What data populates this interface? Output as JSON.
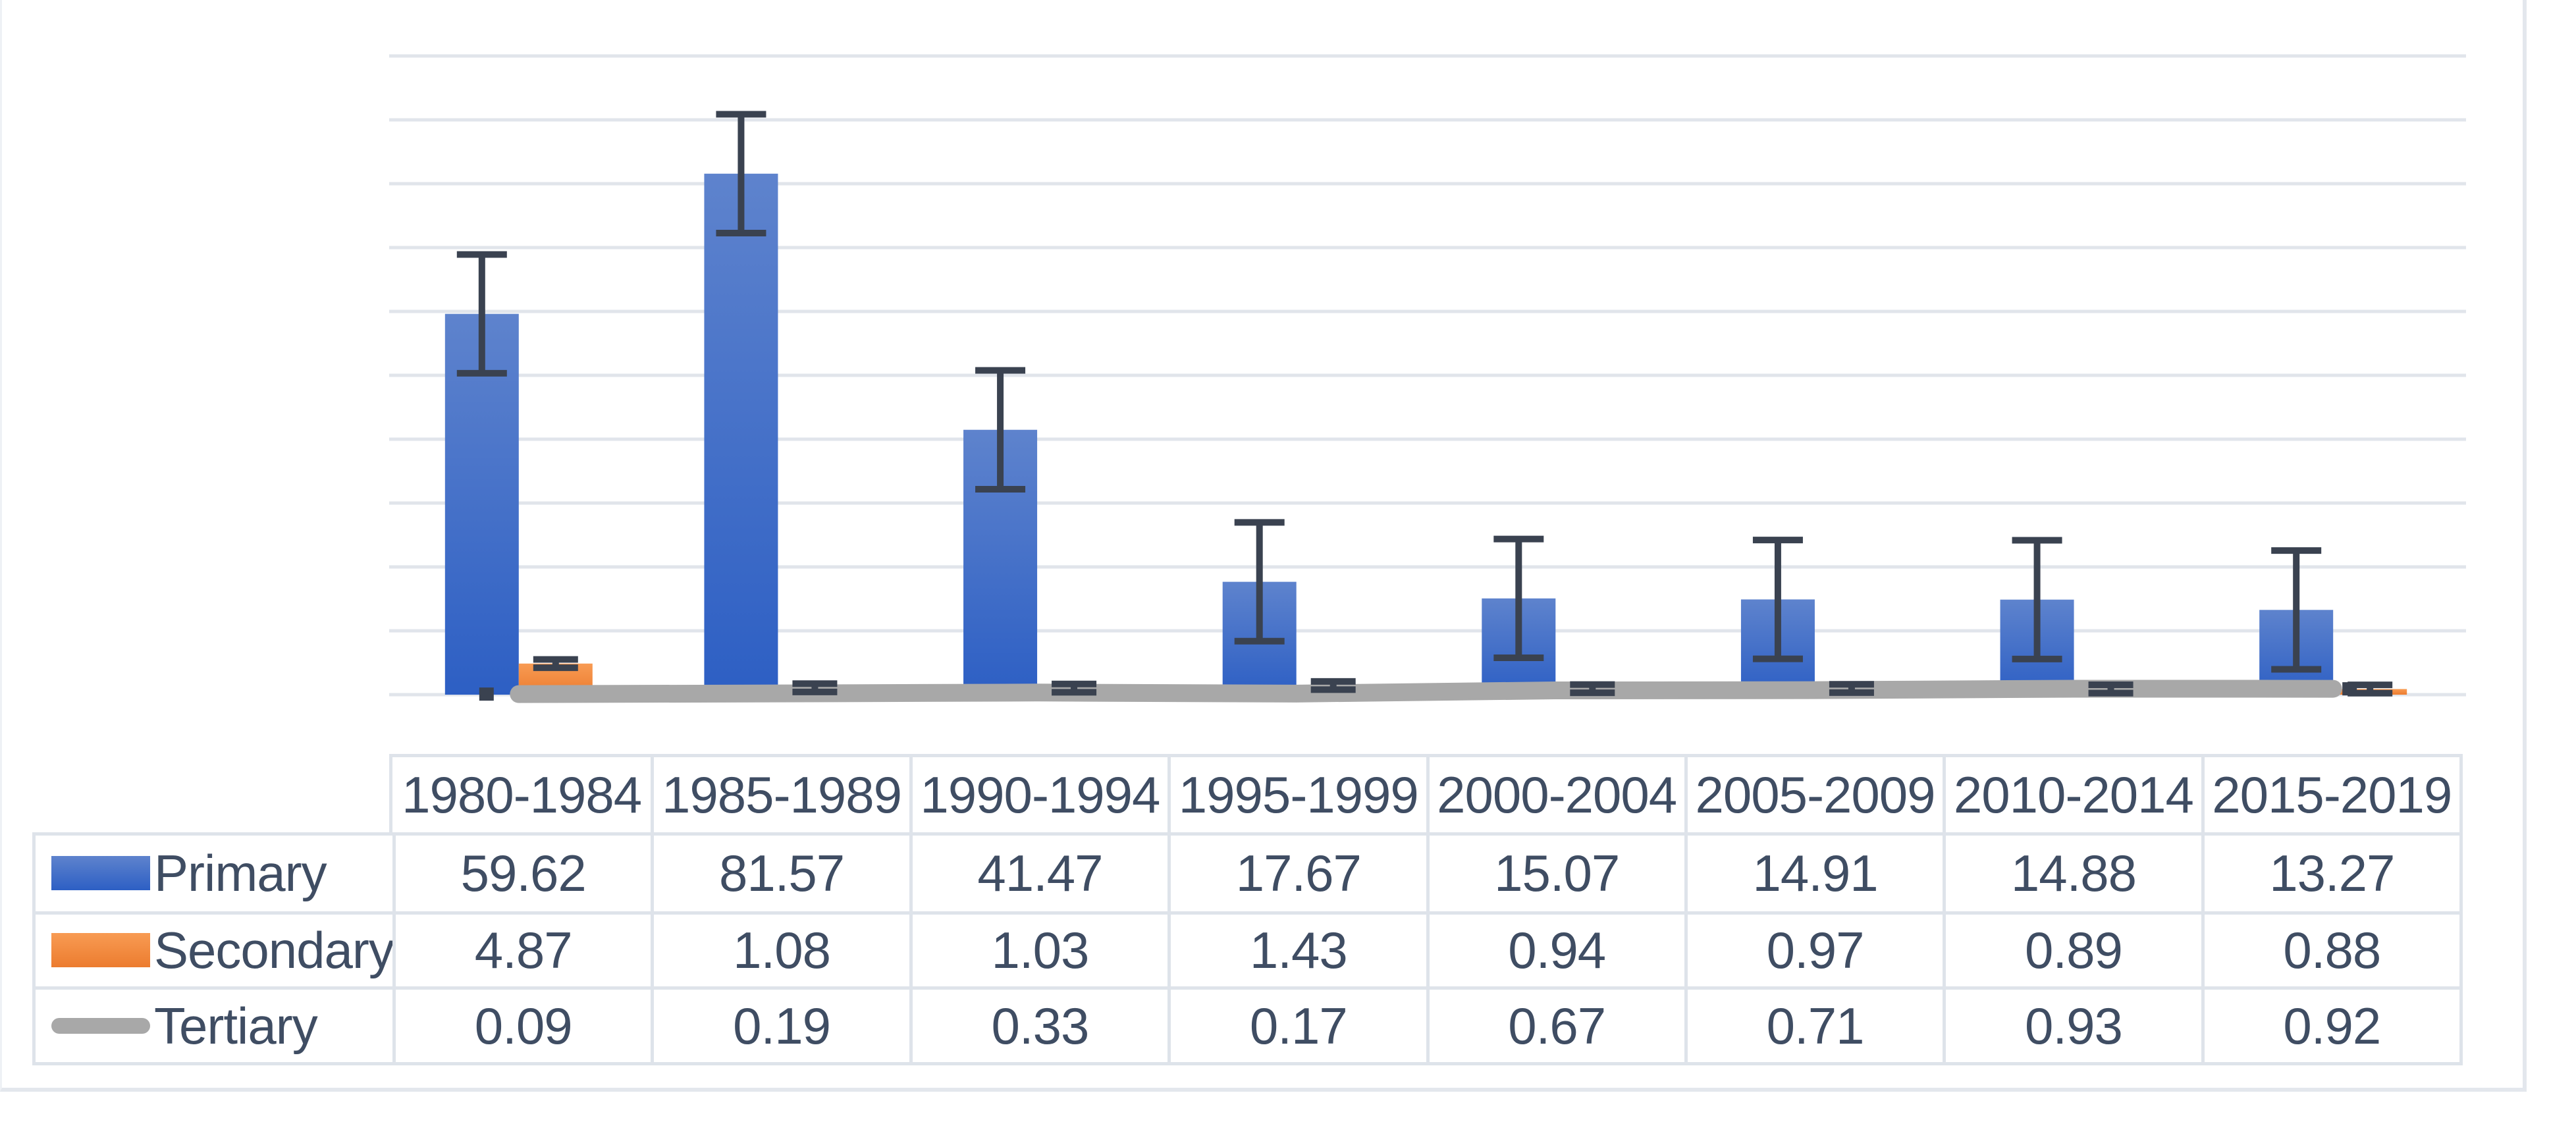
{
  "chart_data": {
    "type": "bar",
    "subtype": "clustered-column-with-line",
    "title": "",
    "categories": [
      "1980-1984",
      "1985-1989",
      "1990-1994",
      "1995-1999",
      "2000-2004",
      "2005-2009",
      "2010-2014",
      "2015-2019"
    ],
    "series": [
      {
        "name": "Primary",
        "render": "column",
        "values": [
          59.62,
          81.57,
          41.47,
          17.67,
          15.07,
          14.91,
          14.88,
          13.27
        ],
        "error": 9.3,
        "color_top": "#5E83CD",
        "color_bottom": "#2D5FC4"
      },
      {
        "name": "Secondary",
        "render": "column",
        "values": [
          4.87,
          1.08,
          1.03,
          1.43,
          0.94,
          0.97,
          0.89,
          0.88
        ],
        "error": 0.65,
        "color_top": "#F89B53",
        "color_bottom": "#EC7C2F"
      },
      {
        "name": "Tertiary",
        "render": "line",
        "values": [
          0.09,
          0.19,
          0.33,
          0.17,
          0.67,
          0.71,
          0.93,
          0.92
        ],
        "error": 0.35,
        "color": "#A8A8A8"
      }
    ],
    "y_axis": {
      "min": 0,
      "max": 100,
      "major_unit": 10,
      "gridlines": true,
      "tick_labels_visible": false
    },
    "x_axis": {
      "tick_labels_visible": false,
      "labels_shown_in_data_table": true
    },
    "legend_position": "data-table",
    "colors": {
      "error_bar": "#3A4250",
      "gridline": "#E1E5EB",
      "table_border": "#DEE3EA",
      "frame_border": "#E3E7ED",
      "text": "#3F4D63"
    }
  },
  "table": {
    "categories": [
      "1980-1984",
      "1985-1989",
      "1990-1994",
      "1995-1999",
      "2000-2004",
      "2005-2009",
      "2010-2014",
      "2015-2019"
    ],
    "rows": [
      {
        "label": "Primary",
        "swatch": "primary-column-key",
        "values": [
          "59.62",
          "81.57",
          "41.47",
          "17.67",
          "15.07",
          "14.91",
          "14.88",
          "13.27"
        ]
      },
      {
        "label": "Secondary",
        "swatch": "secondary-column-key",
        "values": [
          "4.87",
          "1.08",
          "1.03",
          "1.43",
          "0.94",
          "0.97",
          "0.89",
          "0.88"
        ]
      },
      {
        "label": "Tertiary",
        "swatch": "tertiary-line-key",
        "values": [
          "0.09",
          "0.19",
          "0.33",
          "0.17",
          "0.67",
          "0.71",
          "0.93",
          "0.92"
        ]
      }
    ]
  }
}
